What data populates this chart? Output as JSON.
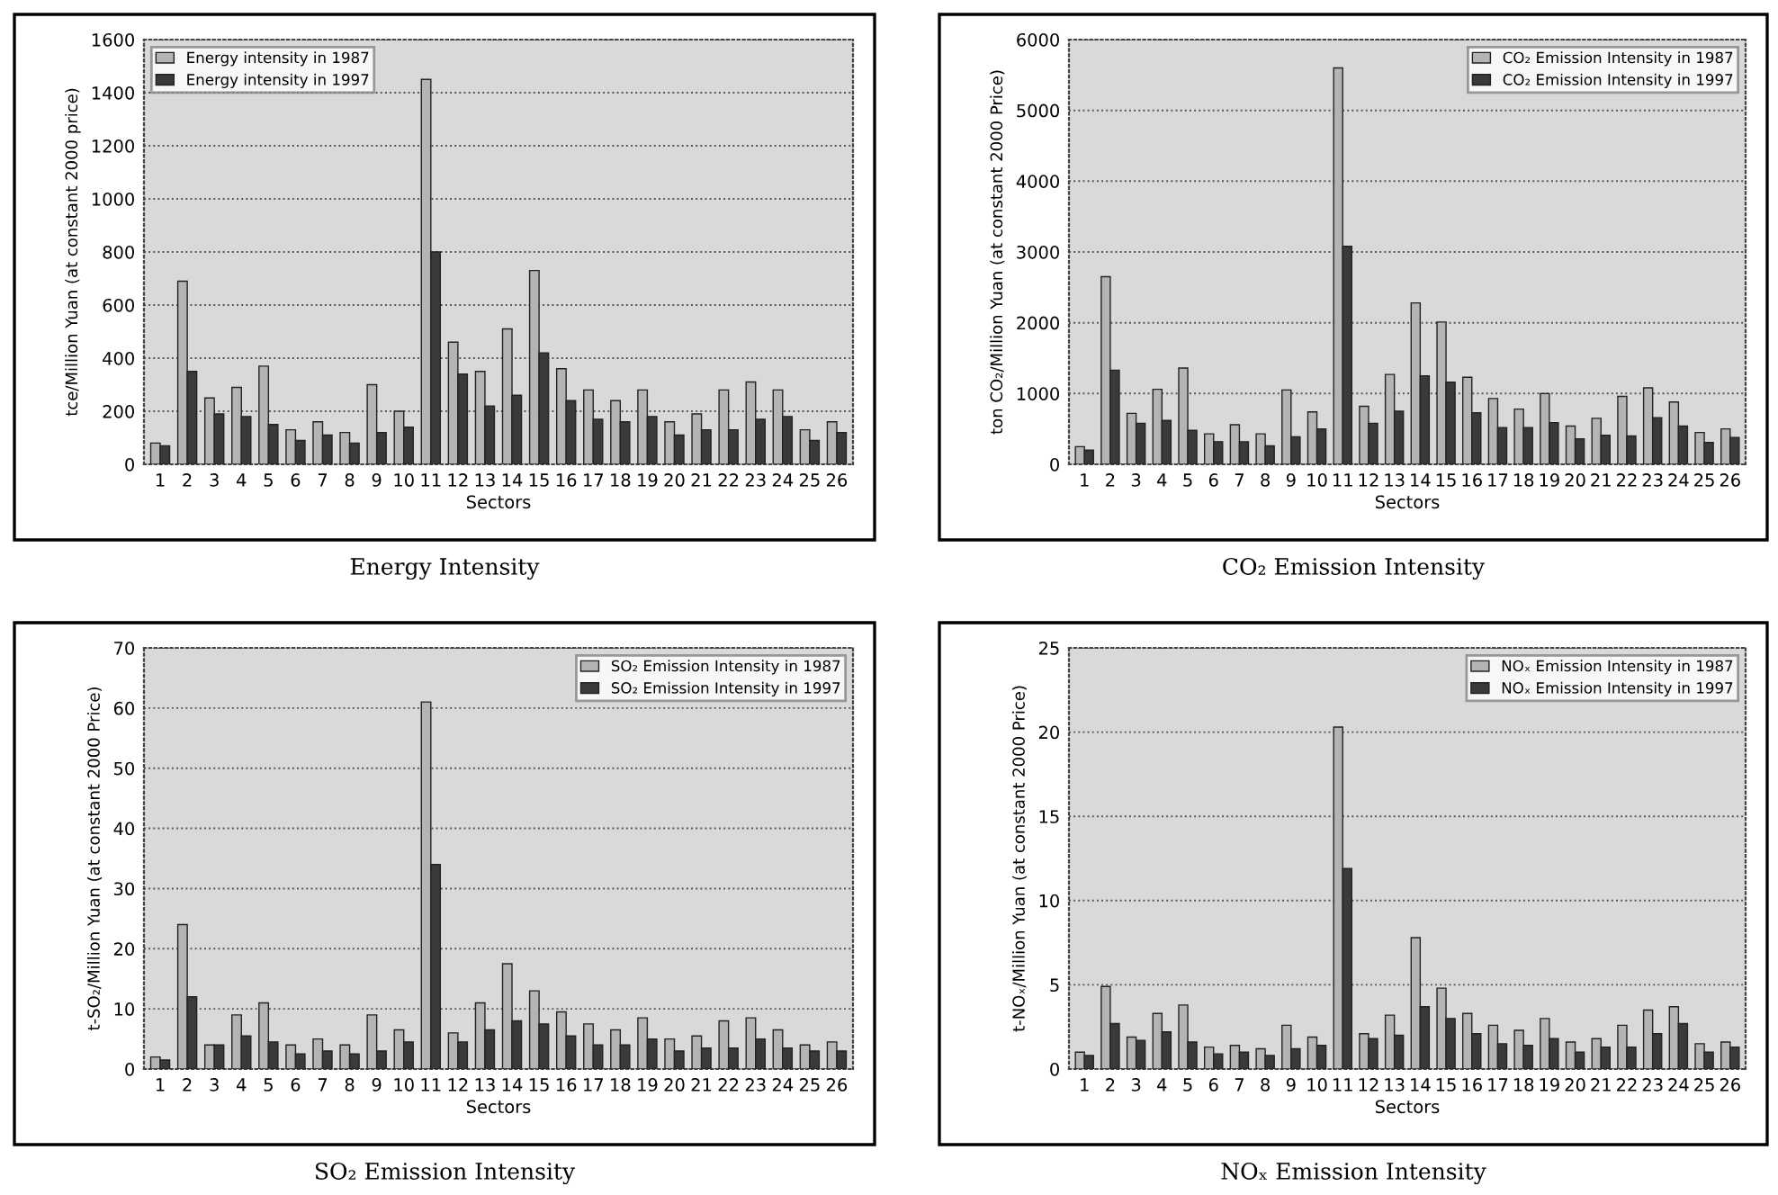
{
  "chart_data": [
    {
      "type": "bar",
      "title": "Energy Intensity",
      "xlabel": "Sectors",
      "ylabel": "tce/Million Yuan (at constant 2000 price)",
      "categories": [
        "1",
        "2",
        "3",
        "4",
        "5",
        "6",
        "7",
        "8",
        "9",
        "10",
        "11",
        "12",
        "13",
        "14",
        "15",
        "16",
        "17",
        "18",
        "19",
        "20",
        "21",
        "22",
        "23",
        "24",
        "25",
        "26"
      ],
      "series": [
        {
          "name": "Energy intensity in 1987",
          "color": "#b4b4b4",
          "values": [
            80,
            690,
            250,
            290,
            370,
            130,
            160,
            120,
            300,
            200,
            1450,
            460,
            350,
            510,
            730,
            360,
            280,
            240,
            280,
            160,
            190,
            280,
            310,
            280,
            130,
            160
          ]
        },
        {
          "name": "Energy intensity in 1997",
          "color": "#3a3a3a",
          "values": [
            70,
            350,
            190,
            180,
            150,
            90,
            110,
            80,
            120,
            140,
            800,
            340,
            220,
            260,
            420,
            240,
            170,
            160,
            180,
            110,
            130,
            130,
            170,
            180,
            90,
            120
          ]
        }
      ],
      "ylim": [
        0,
        1600
      ],
      "yticks": [
        0,
        200,
        400,
        600,
        800,
        1000,
        1200,
        1400,
        1600
      ],
      "grid": "y",
      "legend": "top left"
    },
    {
      "type": "bar",
      "title": "CO₂ Emission Intensity",
      "xlabel": "Sectors",
      "ylabel": "ton CO₂/Million Yuan (at constant 2000 Price)",
      "categories": [
        "1",
        "2",
        "3",
        "4",
        "5",
        "6",
        "7",
        "8",
        "9",
        "10",
        "11",
        "12",
        "13",
        "14",
        "15",
        "16",
        "17",
        "18",
        "19",
        "20",
        "21",
        "22",
        "23",
        "24",
        "25",
        "26"
      ],
      "series": [
        {
          "name": "CO₂ Emission Intensity in 1987",
          "color": "#b4b4b4",
          "values": [
            250,
            2650,
            720,
            1060,
            1360,
            430,
            560,
            430,
            1050,
            740,
            5600,
            820,
            1270,
            2280,
            2010,
            1230,
            930,
            780,
            1000,
            540,
            650,
            960,
            1080,
            880,
            450,
            500
          ]
        },
        {
          "name": "CO₂ Emission Intensity in 1997",
          "color": "#3a3a3a",
          "values": [
            200,
            1330,
            580,
            620,
            480,
            320,
            320,
            260,
            390,
            500,
            3080,
            580,
            750,
            1250,
            1160,
            730,
            520,
            520,
            590,
            360,
            410,
            400,
            660,
            540,
            310,
            380
          ]
        }
      ],
      "ylim": [
        0,
        6000
      ],
      "yticks": [
        0,
        1000,
        2000,
        3000,
        4000,
        5000,
        6000
      ],
      "grid": "y",
      "legend": "top right"
    },
    {
      "type": "bar",
      "title": "SO₂ Emission Intensity",
      "xlabel": "Sectors",
      "ylabel": "t-SO₂/Million Yuan (at constant 2000 Price)",
      "categories": [
        "1",
        "2",
        "3",
        "4",
        "5",
        "6",
        "7",
        "8",
        "9",
        "10",
        "11",
        "12",
        "13",
        "14",
        "15",
        "16",
        "17",
        "18",
        "19",
        "20",
        "21",
        "22",
        "23",
        "24",
        "25",
        "26"
      ],
      "series": [
        {
          "name": "SO₂ Emission Intensity in 1987",
          "color": "#b4b4b4",
          "values": [
            2,
            24,
            4,
            9,
            11,
            4,
            5,
            4,
            9,
            6.5,
            61,
            6,
            11,
            17.5,
            13,
            9.5,
            7.5,
            6.5,
            8.5,
            5,
            5.5,
            8,
            8.5,
            6.5,
            4,
            4.5
          ]
        },
        {
          "name": "SO₂ Emission Intensity in 1997",
          "color": "#3a3a3a",
          "values": [
            1.5,
            12,
            4,
            5.5,
            4.5,
            2.5,
            3,
            2.5,
            3,
            4.5,
            34,
            4.5,
            6.5,
            8,
            7.5,
            5.5,
            4,
            4,
            5,
            3,
            3.5,
            3.5,
            5,
            3.5,
            3,
            3
          ]
        }
      ],
      "ylim": [
        0,
        70
      ],
      "yticks": [
        0,
        10,
        20,
        30,
        40,
        50,
        60,
        70
      ],
      "grid": "y",
      "legend": "top right"
    },
    {
      "type": "bar",
      "title": "NOₓ Emission Intensity",
      "xlabel": "Sectors",
      "ylabel": "t-NOₓ/Million Yuan (at constant 2000 Price)",
      "categories": [
        "1",
        "2",
        "3",
        "4",
        "5",
        "6",
        "7",
        "8",
        "9",
        "10",
        "11",
        "12",
        "13",
        "14",
        "15",
        "16",
        "17",
        "18",
        "19",
        "20",
        "21",
        "22",
        "23",
        "24",
        "25",
        "26"
      ],
      "series": [
        {
          "name": "NOₓ Emission Intensity in 1987",
          "color": "#b4b4b4",
          "values": [
            1,
            4.9,
            1.9,
            3.3,
            3.8,
            1.3,
            1.4,
            1.2,
            2.6,
            1.9,
            20.3,
            2.1,
            3.2,
            7.8,
            4.8,
            3.3,
            2.6,
            2.3,
            3.0,
            1.6,
            1.8,
            2.6,
            3.5,
            3.7,
            1.5,
            1.6
          ]
        },
        {
          "name": "NOₓ Emission Intensity in 1997",
          "color": "#3a3a3a",
          "values": [
            0.8,
            2.7,
            1.7,
            2.2,
            1.6,
            0.9,
            1.0,
            0.8,
            1.2,
            1.4,
            11.9,
            1.8,
            2.0,
            3.7,
            3.0,
            2.1,
            1.5,
            1.4,
            1.8,
            1.0,
            1.3,
            1.3,
            2.1,
            2.7,
            1.0,
            1.3
          ]
        }
      ],
      "ylim": [
        0,
        25
      ],
      "yticks": [
        0,
        5,
        10,
        15,
        20,
        25
      ],
      "grid": "y",
      "legend": "top right"
    }
  ]
}
